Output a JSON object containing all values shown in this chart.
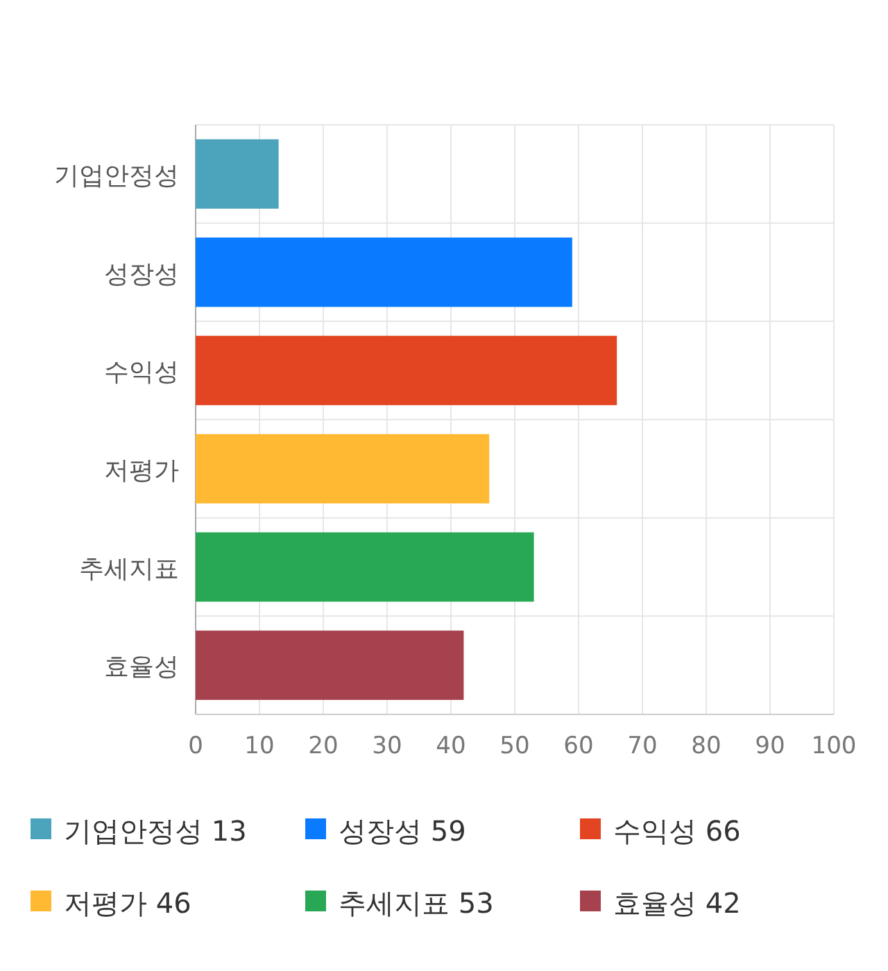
{
  "chart_data": {
    "type": "bar",
    "orientation": "horizontal",
    "categories": [
      "기업안정성",
      "성장성",
      "수익성",
      "저평가",
      "추세지표",
      "효율성"
    ],
    "series": [
      {
        "name": "기업안정성 13",
        "color": "#4ba3bc",
        "values": [
          13,
          null,
          null,
          null,
          null,
          null
        ]
      },
      {
        "name": "성장성 59",
        "color": "#0a7bff",
        "values": [
          null,
          59,
          null,
          null,
          null,
          null
        ]
      },
      {
        "name": "수익성 66",
        "color": "#e34522",
        "values": [
          null,
          null,
          66,
          null,
          null,
          null
        ]
      },
      {
        "name": "저평가 46",
        "color": "#ffb932",
        "values": [
          null,
          null,
          null,
          46,
          null,
          null
        ]
      },
      {
        "name": "추세지표 53",
        "color": "#28a755",
        "values": [
          null,
          null,
          null,
          null,
          53,
          null
        ]
      },
      {
        "name": "효율성 42",
        "color": "#a6414e",
        "values": [
          null,
          null,
          null,
          null,
          null,
          42
        ]
      }
    ],
    "xlim": [
      0,
      100
    ],
    "xticks": [
      0,
      10,
      20,
      30,
      40,
      50,
      60,
      70,
      80,
      90,
      100
    ],
    "grid": true,
    "legend": "bottom"
  }
}
